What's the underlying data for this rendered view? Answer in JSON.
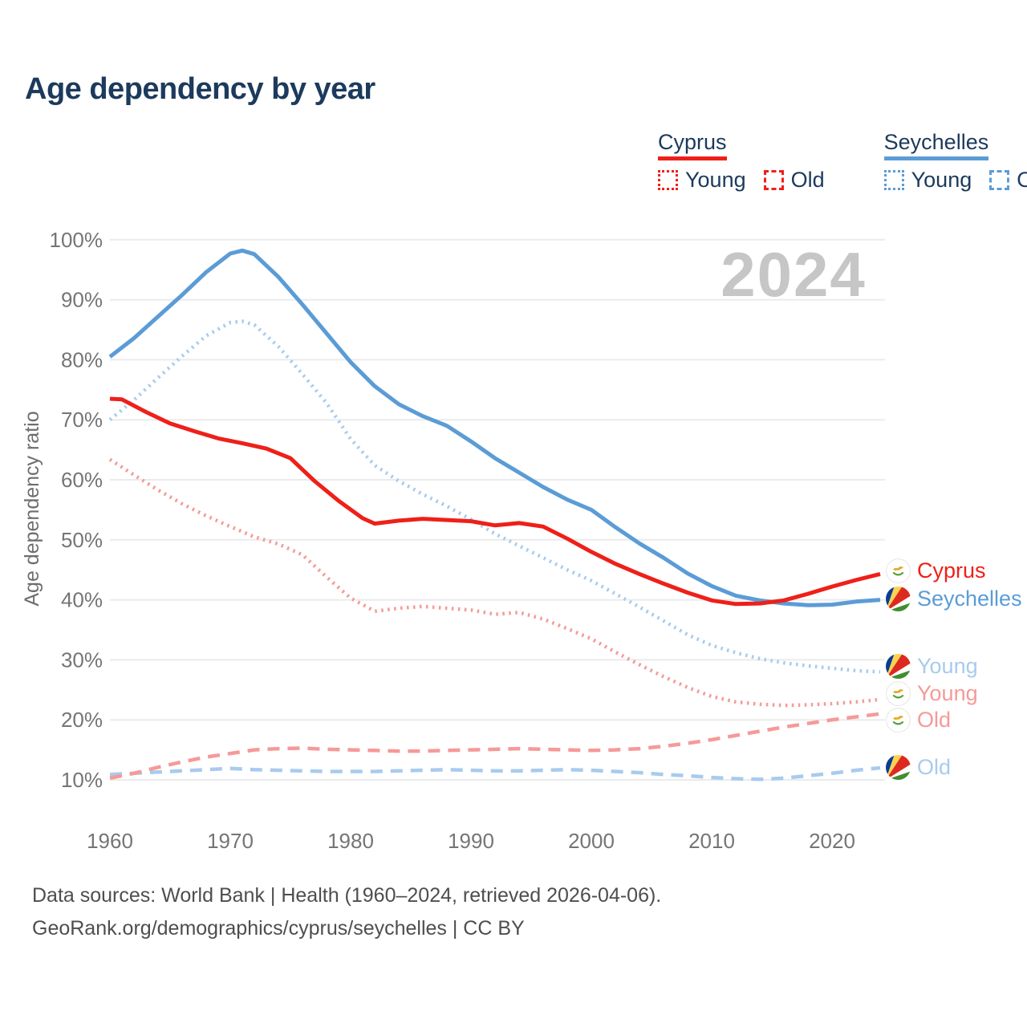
{
  "title": "Age dependency by year",
  "watermark": "2024",
  "colors": {
    "title_navy": "#1c3a5c",
    "cyprus_red": "#ee2019",
    "cyprus_light": "#f59a98",
    "seychelles_blue": "#5b9cd6",
    "seychelles_light": "#a8cbee",
    "gridline": "#ebebeb",
    "tick_text": "#757575",
    "watermark_gray": "#c6c6c6"
  },
  "legend": {
    "groups": [
      {
        "name": "Cyprus",
        "color": "#ee2019",
        "young_label": "Young",
        "old_label": "Old"
      },
      {
        "name": "Seychelles",
        "color": "#5b9cd6",
        "young_label": "Young",
        "old_label": "Old"
      }
    ]
  },
  "chart_data": {
    "type": "line",
    "title": "Age dependency by year",
    "xlabel": "",
    "ylabel": "Age dependency ratio",
    "ylim": [
      10,
      100
    ],
    "ytick_suffix": "%",
    "yticks": [
      10,
      20,
      30,
      40,
      50,
      60,
      70,
      80,
      90,
      100
    ],
    "xticks": [
      1960,
      1970,
      1980,
      1990,
      2000,
      2010,
      2020
    ],
    "x_range": [
      1960,
      2024
    ],
    "grid": "horizontal-only",
    "legend_position": "top-right",
    "series": [
      {
        "name": "Seychelles Old",
        "country": "Seychelles",
        "measure": "Old",
        "style": "dashed",
        "color": "#a8cbee",
        "flag": "seychelles",
        "points": [
          [
            1960,
            10.9
          ],
          [
            1962,
            11.1
          ],
          [
            1964,
            11.3
          ],
          [
            1966,
            11.5
          ],
          [
            1968,
            11.7
          ],
          [
            1970,
            11.9
          ],
          [
            1972,
            11.7
          ],
          [
            1974,
            11.6
          ],
          [
            1976,
            11.5
          ],
          [
            1978,
            11.4
          ],
          [
            1980,
            11.4
          ],
          [
            1982,
            11.4
          ],
          [
            1984,
            11.5
          ],
          [
            1986,
            11.6
          ],
          [
            1988,
            11.7
          ],
          [
            1990,
            11.6
          ],
          [
            1992,
            11.5
          ],
          [
            1994,
            11.5
          ],
          [
            1996,
            11.6
          ],
          [
            1998,
            11.7
          ],
          [
            2000,
            11.6
          ],
          [
            2002,
            11.4
          ],
          [
            2004,
            11.2
          ],
          [
            2006,
            10.9
          ],
          [
            2008,
            10.7
          ],
          [
            2010,
            10.4
          ],
          [
            2012,
            10.2
          ],
          [
            2014,
            10.1
          ],
          [
            2016,
            10.3
          ],
          [
            2018,
            10.7
          ],
          [
            2020,
            11.1
          ],
          [
            2022,
            11.6
          ],
          [
            2024,
            12.0
          ]
        ]
      },
      {
        "name": "Cyprus Old",
        "country": "Cyprus",
        "measure": "Old",
        "style": "dashed",
        "color": "#f59a98",
        "flag": "cyprus",
        "points": [
          [
            1960,
            10.3
          ],
          [
            1962,
            11.1
          ],
          [
            1964,
            12.1
          ],
          [
            1966,
            13.0
          ],
          [
            1968,
            13.8
          ],
          [
            1970,
            14.4
          ],
          [
            1972,
            15.0
          ],
          [
            1974,
            15.2
          ],
          [
            1976,
            15.3
          ],
          [
            1978,
            15.1
          ],
          [
            1980,
            15.0
          ],
          [
            1982,
            14.9
          ],
          [
            1984,
            14.8
          ],
          [
            1986,
            14.8
          ],
          [
            1988,
            14.9
          ],
          [
            1990,
            15.0
          ],
          [
            1992,
            15.1
          ],
          [
            1994,
            15.2
          ],
          [
            1996,
            15.1
          ],
          [
            1998,
            15.0
          ],
          [
            2000,
            14.9
          ],
          [
            2002,
            15.0
          ],
          [
            2004,
            15.2
          ],
          [
            2006,
            15.6
          ],
          [
            2008,
            16.1
          ],
          [
            2010,
            16.7
          ],
          [
            2012,
            17.4
          ],
          [
            2014,
            18.1
          ],
          [
            2016,
            18.8
          ],
          [
            2018,
            19.4
          ],
          [
            2020,
            20.0
          ],
          [
            2022,
            20.5
          ],
          [
            2024,
            21.0
          ]
        ]
      },
      {
        "name": "Cyprus Young",
        "country": "Cyprus",
        "measure": "Young",
        "style": "dotted",
        "color": "#f59a98",
        "flag": "cyprus",
        "points": [
          [
            1960,
            63.4
          ],
          [
            1962,
            60.8
          ],
          [
            1964,
            58.3
          ],
          [
            1966,
            56.0
          ],
          [
            1968,
            54.0
          ],
          [
            1970,
            52.2
          ],
          [
            1972,
            50.5
          ],
          [
            1974,
            49.3
          ],
          [
            1976,
            47.5
          ],
          [
            1978,
            43.8
          ],
          [
            1980,
            40.3
          ],
          [
            1982,
            38.1
          ],
          [
            1984,
            38.6
          ],
          [
            1986,
            38.9
          ],
          [
            1988,
            38.6
          ],
          [
            1990,
            38.3
          ],
          [
            1992,
            37.6
          ],
          [
            1994,
            37.9
          ],
          [
            1996,
            36.8
          ],
          [
            1998,
            35.2
          ],
          [
            2000,
            33.5
          ],
          [
            2002,
            31.3
          ],
          [
            2004,
            29.2
          ],
          [
            2006,
            27.2
          ],
          [
            2008,
            25.4
          ],
          [
            2010,
            23.9
          ],
          [
            2012,
            23.0
          ],
          [
            2014,
            22.6
          ],
          [
            2016,
            22.4
          ],
          [
            2018,
            22.5
          ],
          [
            2020,
            22.7
          ],
          [
            2022,
            23.0
          ],
          [
            2024,
            23.4
          ]
        ]
      },
      {
        "name": "Seychelles Young",
        "country": "Seychelles",
        "measure": "Young",
        "style": "dotted",
        "color": "#a8cbee",
        "flag": "seychelles",
        "points": [
          [
            1960,
            70.0
          ],
          [
            1962,
            73.3
          ],
          [
            1964,
            77.0
          ],
          [
            1966,
            80.6
          ],
          [
            1968,
            84.0
          ],
          [
            1970,
            86.2
          ],
          [
            1971,
            86.4
          ],
          [
            1972,
            85.8
          ],
          [
            1974,
            82.2
          ],
          [
            1976,
            77.6
          ],
          [
            1978,
            72.8
          ],
          [
            1980,
            66.8
          ],
          [
            1982,
            62.4
          ],
          [
            1984,
            59.8
          ],
          [
            1986,
            57.6
          ],
          [
            1988,
            55.6
          ],
          [
            1990,
            53.4
          ],
          [
            1992,
            51.0
          ],
          [
            1994,
            49.0
          ],
          [
            1996,
            47.0
          ],
          [
            1998,
            45.0
          ],
          [
            2000,
            43.2
          ],
          [
            2002,
            41.0
          ],
          [
            2004,
            38.8
          ],
          [
            2006,
            36.5
          ],
          [
            2008,
            34.2
          ],
          [
            2010,
            32.4
          ],
          [
            2012,
            31.2
          ],
          [
            2014,
            30.2
          ],
          [
            2016,
            29.5
          ],
          [
            2018,
            29.0
          ],
          [
            2020,
            28.6
          ],
          [
            2022,
            28.2
          ],
          [
            2024,
            28.0
          ]
        ]
      },
      {
        "name": "Seychelles",
        "country": "Seychelles",
        "measure": "Total",
        "style": "solid",
        "color": "#5b9cd6",
        "flag": "seychelles",
        "points": [
          [
            1960,
            80.5
          ],
          [
            1962,
            83.6
          ],
          [
            1964,
            87.2
          ],
          [
            1966,
            90.8
          ],
          [
            1968,
            94.6
          ],
          [
            1970,
            97.7
          ],
          [
            1971,
            98.2
          ],
          [
            1972,
            97.6
          ],
          [
            1974,
            93.8
          ],
          [
            1976,
            89.2
          ],
          [
            1978,
            84.4
          ],
          [
            1980,
            79.6
          ],
          [
            1982,
            75.6
          ],
          [
            1984,
            72.6
          ],
          [
            1986,
            70.6
          ],
          [
            1988,
            69.0
          ],
          [
            1990,
            66.4
          ],
          [
            1992,
            63.6
          ],
          [
            1994,
            61.2
          ],
          [
            1996,
            58.8
          ],
          [
            1998,
            56.7
          ],
          [
            2000,
            55.0
          ],
          [
            2002,
            52.1
          ],
          [
            2004,
            49.4
          ],
          [
            2006,
            47.0
          ],
          [
            2008,
            44.4
          ],
          [
            2010,
            42.3
          ],
          [
            2012,
            40.7
          ],
          [
            2014,
            39.9
          ],
          [
            2016,
            39.4
          ],
          [
            2018,
            39.1
          ],
          [
            2020,
            39.2
          ],
          [
            2022,
            39.7
          ],
          [
            2024,
            40.0
          ]
        ]
      },
      {
        "name": "Cyprus",
        "country": "Cyprus",
        "measure": "Total",
        "style": "solid",
        "color": "#ee2019",
        "flag": "cyprus",
        "points": [
          [
            1960,
            73.5
          ],
          [
            1961,
            73.4
          ],
          [
            1963,
            71.3
          ],
          [
            1965,
            69.4
          ],
          [
            1967,
            68.1
          ],
          [
            1969,
            66.9
          ],
          [
            1971,
            66.1
          ],
          [
            1973,
            65.2
          ],
          [
            1975,
            63.6
          ],
          [
            1977,
            59.8
          ],
          [
            1979,
            56.5
          ],
          [
            1981,
            53.6
          ],
          [
            1982,
            52.7
          ],
          [
            1984,
            53.2
          ],
          [
            1986,
            53.5
          ],
          [
            1988,
            53.3
          ],
          [
            1990,
            53.1
          ],
          [
            1992,
            52.4
          ],
          [
            1994,
            52.8
          ],
          [
            1996,
            52.2
          ],
          [
            1998,
            50.2
          ],
          [
            2000,
            48.0
          ],
          [
            2002,
            46.0
          ],
          [
            2004,
            44.3
          ],
          [
            2006,
            42.7
          ],
          [
            2008,
            41.2
          ],
          [
            2010,
            39.9
          ],
          [
            2012,
            39.3
          ],
          [
            2014,
            39.4
          ],
          [
            2016,
            39.9
          ],
          [
            2018,
            41.0
          ],
          [
            2020,
            42.2
          ],
          [
            2022,
            43.3
          ],
          [
            2024,
            44.3
          ]
        ]
      }
    ]
  },
  "right_labels": [
    {
      "text": "Cyprus",
      "series": 5,
      "color": "#ee2019"
    },
    {
      "text": "Seychelles",
      "series": 4,
      "color": "#5b9cd6"
    },
    {
      "text": "Young",
      "series": 3,
      "color": "#a8cbee"
    },
    {
      "text": "Young",
      "series": 2,
      "color": "#f59a98"
    },
    {
      "text": "Old",
      "series": 1,
      "color": "#f59a98"
    },
    {
      "text": "Old",
      "series": 0,
      "color": "#a8cbee"
    }
  ],
  "footer": {
    "line1": "Data sources: World Bank | Health (1960–2024, retrieved 2026-04-06).",
    "line2": "GeoRank.org/demographics/cyprus/seychelles | CC BY"
  }
}
